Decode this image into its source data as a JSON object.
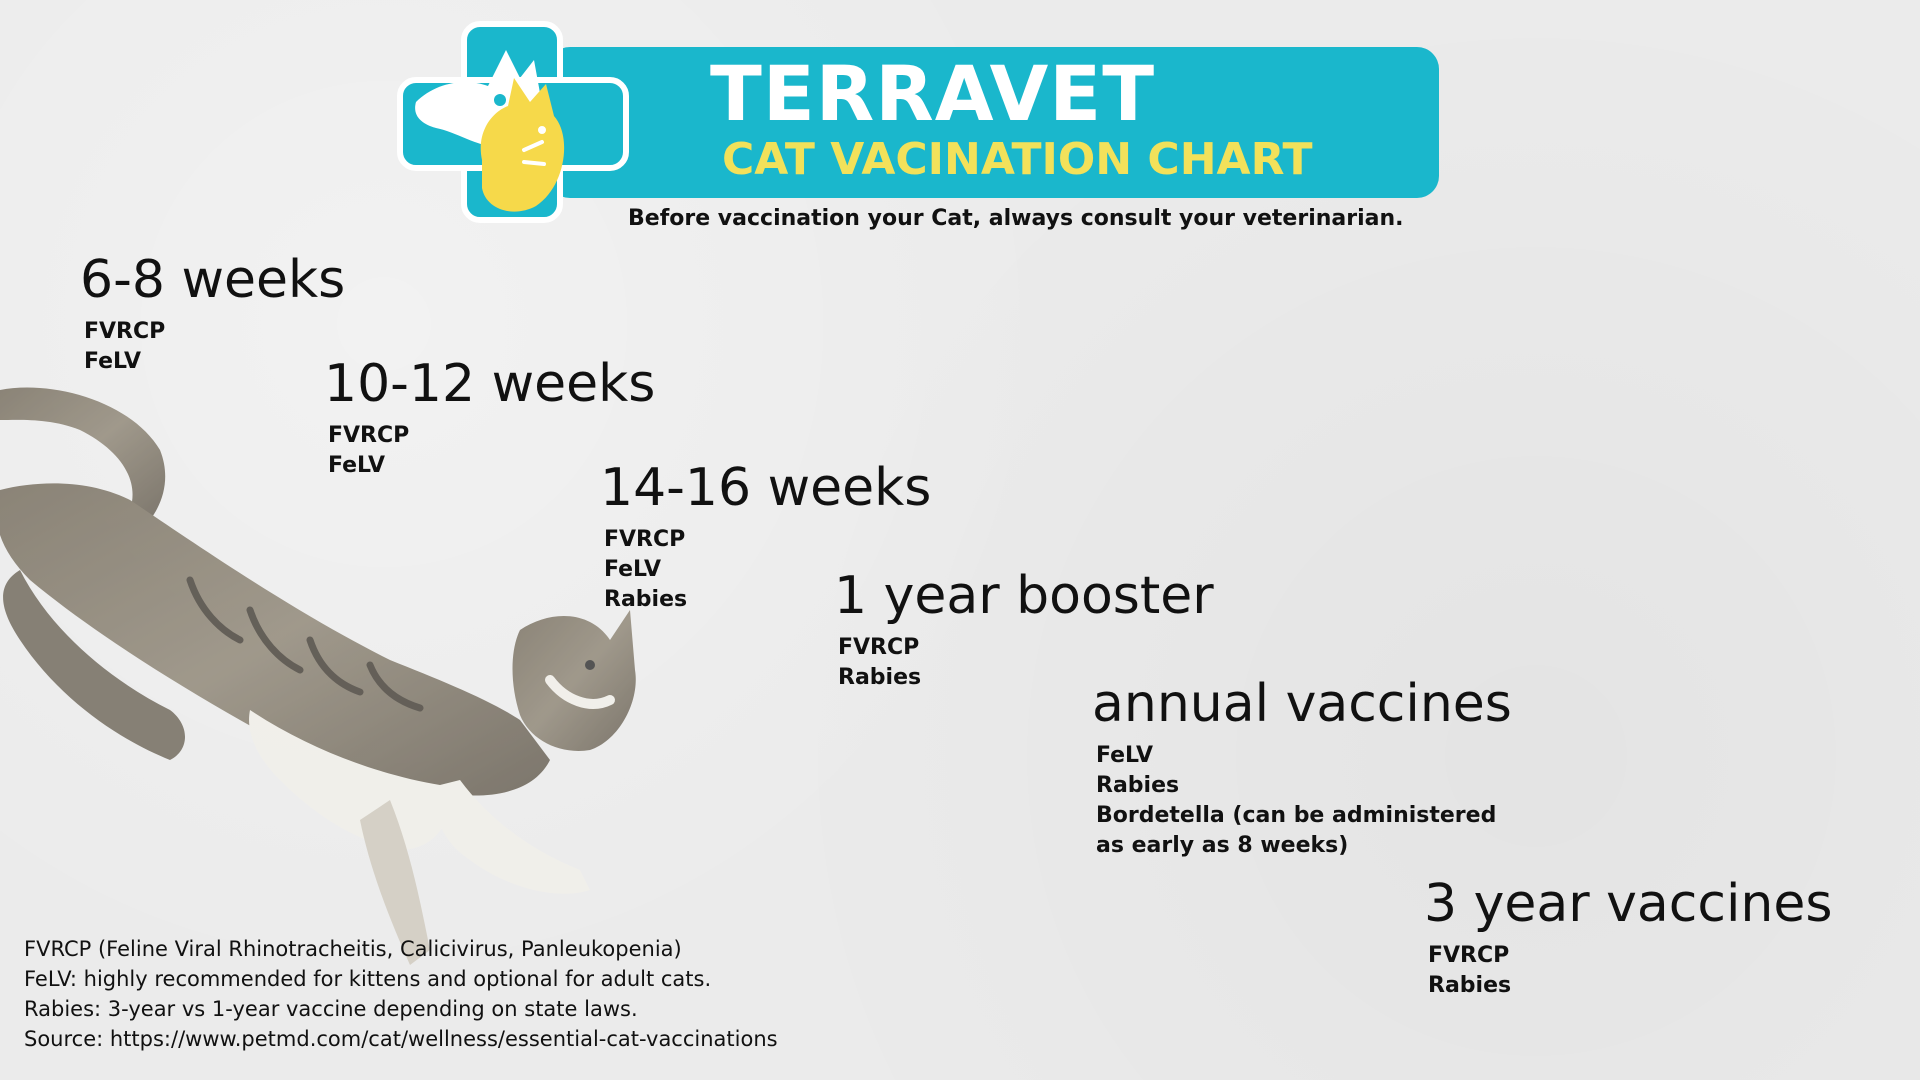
{
  "header": {
    "brand": "TERRAVET",
    "subtitle": "CAT VACINATION CHART",
    "disclaimer": "Before vaccination your Cat, always consult your veterinarian."
  },
  "colors": {
    "banner": "#1ab7cc",
    "subtitle": "#f2e15a",
    "logo_yellow": "#f6d94a",
    "background": "#ebebeb"
  },
  "schedule": [
    {
      "title": "6-8 weeks",
      "items": [
        "FVRCP",
        "FeLV"
      ]
    },
    {
      "title": "10-12 weeks",
      "items": [
        "FVRCP",
        "FeLV"
      ]
    },
    {
      "title": "14-16 weeks",
      "items": [
        "FVRCP",
        "FeLV",
        "Rabies"
      ]
    },
    {
      "title": "1 year booster",
      "items": [
        "FVRCP",
        "Rabies"
      ]
    },
    {
      "title": "annual vaccines",
      "items": [
        "FeLV",
        "Rabies",
        "Bordetella (can be administered",
        "as early as 8 weeks)"
      ]
    },
    {
      "title": "3 year vaccines",
      "items": [
        "FVRCP",
        "Rabies"
      ]
    }
  ],
  "footnotes": [
    "FVRCP (Feline Viral Rhinotracheitis, Calicivirus, Panleukopenia)",
    "FeLV: highly recommended for kittens and optional for adult cats.",
    "Rabies: 3-year vs 1-year vaccine depending on state laws.",
    "Source: https://www.petmd.com/cat/wellness/essential-cat-vaccinations"
  ],
  "icons": {
    "logo": "dog-cat-cross-logo-icon",
    "photo": "jumping-cat-image"
  }
}
